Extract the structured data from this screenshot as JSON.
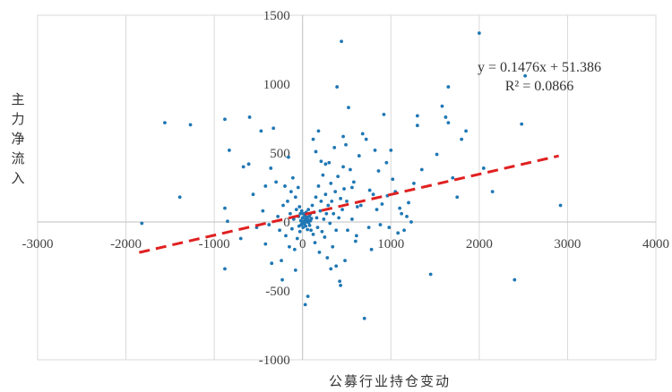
{
  "chart_data": {
    "type": "scatter",
    "xlabel": "公募行业持仓变动",
    "ylabel": "主力净流入",
    "xlim": [
      -3000,
      4000
    ],
    "ylim": [
      -1000,
      1500
    ],
    "x_ticks": [
      -3000,
      -2000,
      -1000,
      0,
      1000,
      2000,
      3000,
      4000
    ],
    "y_ticks": [
      -1000,
      -500,
      0,
      500,
      1000,
      1500
    ],
    "x_tick_labels": [
      "-3000",
      "-2000",
      "-1000",
      "0",
      "1000",
      "2000",
      "3000",
      "4000"
    ],
    "y_tick_labels": [
      "-1000",
      "-500",
      "0",
      "500",
      "1000",
      "1500"
    ],
    "grid": "vertical",
    "point_color": "#1f77b4",
    "trendline_color": "#e02020",
    "trendline": {
      "slope": 0.1476,
      "intercept": 51.386,
      "x_range": [
        -1850,
        2900
      ],
      "style": "dashed",
      "equation": "y = 0.1476x + 51.386",
      "r_squared": "R² = 0.0866"
    },
    "points": [
      [
        -1820,
        -10
      ],
      [
        -1560,
        720
      ],
      [
        -1270,
        705
      ],
      [
        -1390,
        180
      ],
      [
        -880,
        745
      ],
      [
        -830,
        520
      ],
      [
        -880,
        -340
      ],
      [
        -880,
        100
      ],
      [
        -670,
        400
      ],
      [
        -600,
        760
      ],
      [
        -610,
        420
      ],
      [
        -560,
        200
      ],
      [
        -470,
        660
      ],
      [
        -450,
        80
      ],
      [
        -420,
        260
      ],
      [
        -420,
        -160
      ],
      [
        -380,
        -20
      ],
      [
        -360,
        390
      ],
      [
        -330,
        680
      ],
      [
        -300,
        290
      ],
      [
        -280,
        40
      ],
      [
        -260,
        -60
      ],
      [
        -240,
        -280
      ],
      [
        -220,
        120
      ],
      [
        -200,
        260
      ],
      [
        -190,
        -100
      ],
      [
        -170,
        150
      ],
      [
        -150,
        -180
      ],
      [
        -140,
        60
      ],
      [
        -130,
        220
      ],
      [
        -120,
        -50
      ],
      [
        -110,
        320
      ],
      [
        -100,
        20
      ],
      [
        -90,
        -200
      ],
      [
        -80,
        180
      ],
      [
        -70,
        90
      ],
      [
        -60,
        -120
      ],
      [
        -50,
        250
      ],
      [
        -45,
        40
      ],
      [
        -40,
        -30
      ],
      [
        -35,
        110
      ],
      [
        -30,
        -70
      ],
      [
        -25,
        60
      ],
      [
        -20,
        10
      ],
      [
        -15,
        -20
      ],
      [
        -10,
        80
      ],
      [
        -5,
        -10
      ],
      [
        0,
        30
      ],
      [
        5,
        -40
      ],
      [
        10,
        60
      ],
      [
        15,
        5
      ],
      [
        20,
        -15
      ],
      [
        25,
        45
      ],
      [
        30,
        20
      ],
      [
        35,
        -30
      ],
      [
        40,
        70
      ],
      [
        45,
        0
      ],
      [
        50,
        35
      ],
      [
        55,
        -55
      ],
      [
        60,
        15
      ],
      [
        65,
        90
      ],
      [
        70,
        -5
      ],
      [
        75,
        40
      ],
      [
        80,
        -25
      ],
      [
        85,
        55
      ],
      [
        90,
        10
      ],
      [
        95,
        -60
      ],
      [
        100,
        25
      ],
      [
        110,
        120
      ],
      [
        120,
        -90
      ],
      [
        130,
        70
      ],
      [
        140,
        -150
      ],
      [
        150,
        180
      ],
      [
        160,
        30
      ],
      [
        170,
        -40
      ],
      [
        180,
        260
      ],
      [
        190,
        -220
      ],
      [
        200,
        80
      ],
      [
        210,
        150
      ],
      [
        220,
        -70
      ],
      [
        230,
        340
      ],
      [
        240,
        20
      ],
      [
        250,
        -110
      ],
      [
        260,
        200
      ],
      [
        270,
        60
      ],
      [
        280,
        -260
      ],
      [
        290,
        120
      ],
      [
        300,
        430
      ],
      [
        310,
        -10
      ],
      [
        320,
        280
      ],
      [
        330,
        150
      ],
      [
        340,
        -180
      ],
      [
        350,
        60
      ],
      [
        360,
        540
      ],
      [
        370,
        220
      ],
      [
        380,
        -60
      ],
      [
        390,
        980
      ],
      [
        400,
        330
      ],
      [
        410,
        30
      ],
      [
        420,
        -430
      ],
      [
        430,
        170
      ],
      [
        440,
        1310
      ],
      [
        450,
        90
      ],
      [
        460,
        620
      ],
      [
        470,
        240
      ],
      [
        480,
        -280
      ],
      [
        490,
        560
      ],
      [
        500,
        150
      ],
      [
        520,
        830
      ],
      [
        540,
        380
      ],
      [
        560,
        20
      ],
      [
        580,
        290
      ],
      [
        600,
        -140
      ],
      [
        620,
        110
      ],
      [
        640,
        480
      ],
      [
        680,
        640
      ],
      [
        700,
        -700
      ],
      [
        720,
        600
      ],
      [
        760,
        230
      ],
      [
        780,
        -200
      ],
      [
        800,
        200
      ],
      [
        820,
        520
      ],
      [
        860,
        370
      ],
      [
        900,
        130
      ],
      [
        920,
        780
      ],
      [
        950,
        430
      ],
      [
        980,
        -40
      ],
      [
        1000,
        520
      ],
      [
        1020,
        310
      ],
      [
        1050,
        220
      ],
      [
        1100,
        100
      ],
      [
        1150,
        -60
      ],
      [
        1200,
        140
      ],
      [
        1260,
        280
      ],
      [
        1300,
        700
      ],
      [
        1300,
        770
      ],
      [
        1350,
        380
      ],
      [
        1450,
        -380
      ],
      [
        1520,
        490
      ],
      [
        1580,
        840
      ],
      [
        1620,
        760
      ],
      [
        1650,
        720
      ],
      [
        1650,
        980
      ],
      [
        1700,
        320
      ],
      [
        1750,
        180
      ],
      [
        1800,
        600
      ],
      [
        1850,
        660
      ],
      [
        2000,
        1370
      ],
      [
        2050,
        390
      ],
      [
        2150,
        220
      ],
      [
        2400,
        -420
      ],
      [
        2480,
        710
      ],
      [
        2520,
        1060
      ],
      [
        2920,
        120
      ],
      [
        -850,
        5
      ],
      [
        -700,
        -120
      ],
      [
        -520,
        -40
      ],
      [
        -350,
        -300
      ],
      [
        -230,
        -420
      ],
      [
        -160,
        470
      ],
      [
        -80,
        -350
      ],
      [
        30,
        -600
      ],
      [
        60,
        -540
      ],
      [
        120,
        600
      ],
      [
        150,
        510
      ],
      [
        180,
        660
      ],
      [
        210,
        440
      ],
      [
        260,
        420
      ],
      [
        320,
        -340
      ],
      [
        380,
        -320
      ],
      [
        430,
        -460
      ],
      [
        460,
        400
      ],
      [
        510,
        -60
      ],
      [
        560,
        250
      ],
      [
        610,
        -100
      ],
      [
        660,
        120
      ],
      [
        750,
        -40
      ],
      [
        840,
        90
      ],
      [
        880,
        -20
      ],
      [
        960,
        190
      ],
      [
        1080,
        -80
      ],
      [
        1120,
        60
      ],
      [
        1180,
        40
      ],
      [
        1230,
        0
      ]
    ]
  }
}
